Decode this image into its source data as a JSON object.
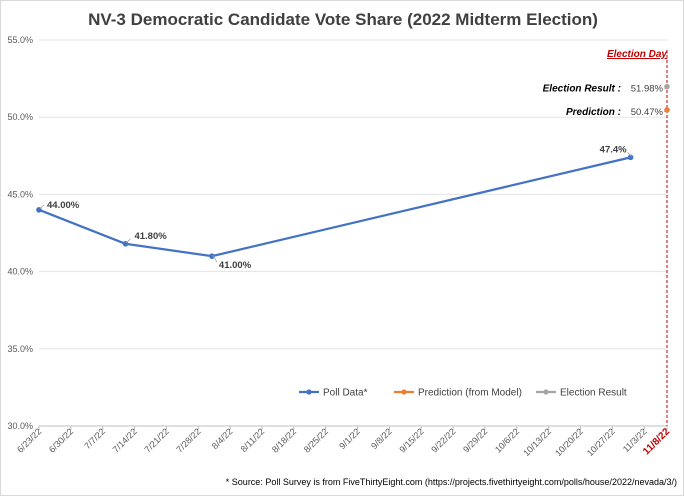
{
  "chart_data": {
    "type": "line",
    "title": "NV-3 Democratic Candidate Vote Share (2022 Midterm Election)",
    "xlabel": "",
    "ylabel": "",
    "ylim": [
      30,
      55
    ],
    "y_ticks": [
      30,
      35,
      40,
      45,
      50,
      55
    ],
    "y_tick_labels": [
      "30.0%",
      "35.0%",
      "40.0%",
      "45.0%",
      "50.0%",
      "55.0%"
    ],
    "x_tick_labels": [
      "6/23/22",
      "6/30/22",
      "7/7/22",
      "7/14/22",
      "7/21/22",
      "7/28/22",
      "8/4/22",
      "8/11/22",
      "8/18/22",
      "8/25/22",
      "9/1/22",
      "9/8/22",
      "9/15/22",
      "9/22/22",
      "9/29/22",
      "10/6/22",
      "10/13/22",
      "10/20/22",
      "10/27/22",
      "11/3/22",
      "11/8/22"
    ],
    "xlim": [
      "2022-06-23",
      "2022-11-08"
    ],
    "grid": "horizontal",
    "legend_position": "bottom-center",
    "series": [
      {
        "name": "Poll Data*",
        "color": "#4472c4",
        "points": [
          {
            "x": "2022-06-23",
            "y": 44.0,
            "label": "44.00%"
          },
          {
            "x": "2022-07-12",
            "y": 41.8,
            "label": "41.80%"
          },
          {
            "x": "2022-07-31",
            "y": 41.0,
            "label": "41.00%"
          },
          {
            "x": "2022-10-31",
            "y": 47.4,
            "label": "47.4%"
          }
        ]
      },
      {
        "name": "Prediction (from Model)",
        "color": "#ed7d31",
        "points": [
          {
            "x": "2022-11-08",
            "y": 50.47,
            "annotation": "Prediction :",
            "label": "50.47%"
          }
        ]
      },
      {
        "name": "Election Result",
        "color": "#a5a5a5",
        "points": [
          {
            "x": "2022-11-08",
            "y": 51.98,
            "annotation": "Election Result :",
            "label": "51.98%"
          }
        ]
      }
    ],
    "election_day": {
      "x": "2022-11-08",
      "label": "Election Day",
      "tick_label": "11/8/22",
      "color": "#c00000"
    },
    "footnote": "* Source: Poll Survey is from FiveThirtyEight.com (https://projects.fivethirtyeight.com/polls/house/2022/nevada/3/)"
  }
}
